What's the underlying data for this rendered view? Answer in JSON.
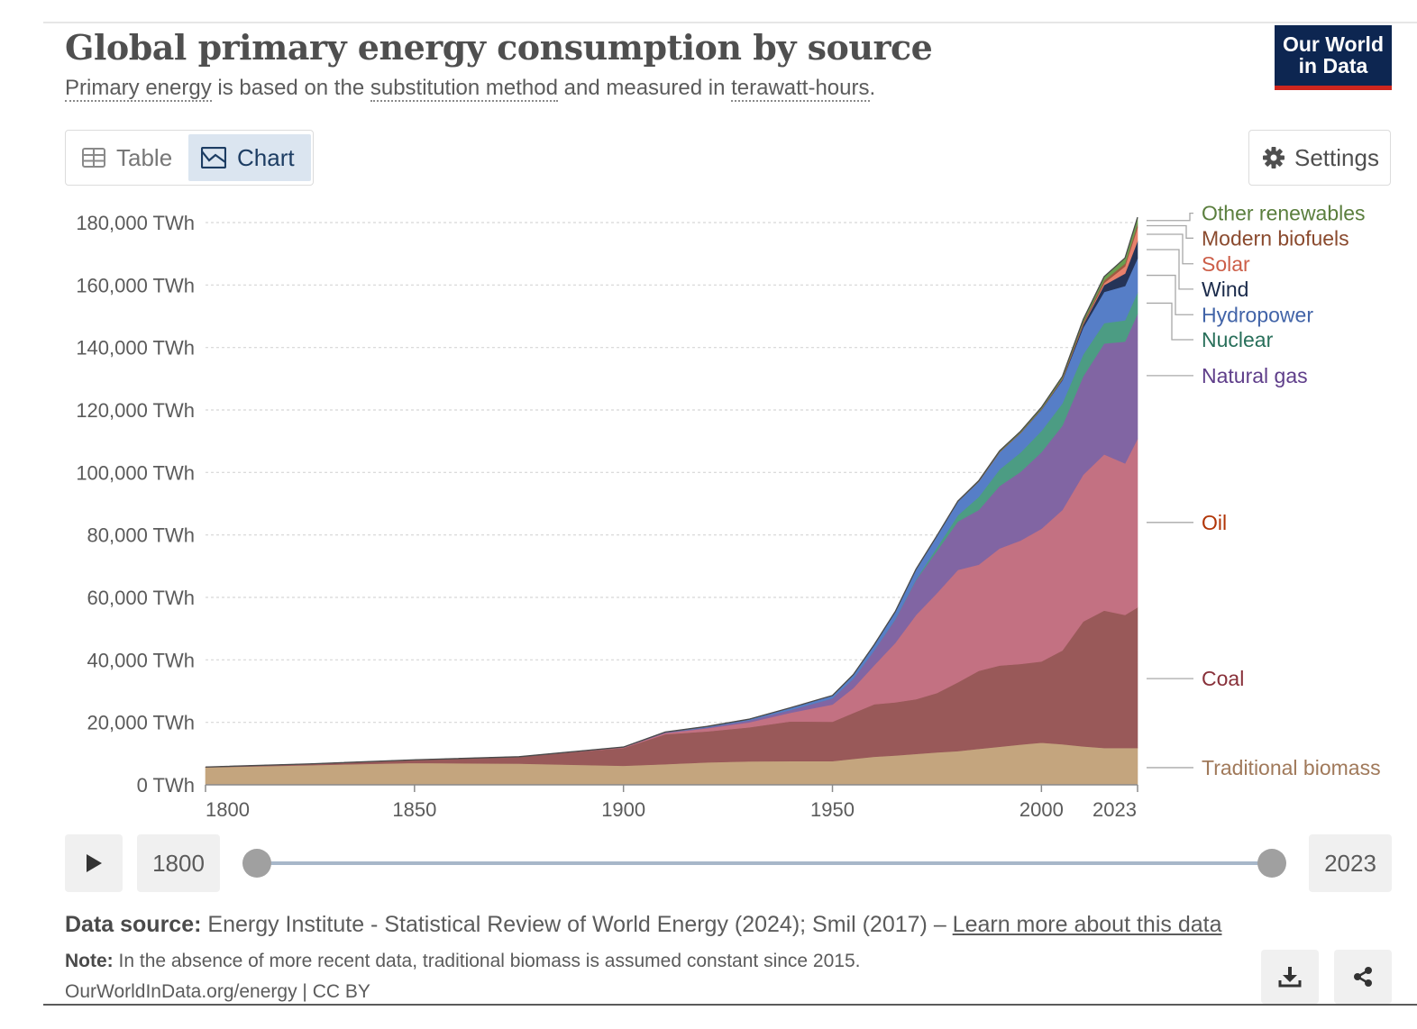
{
  "header": {
    "title": "Global primary energy consumption by source",
    "subtitle": {
      "p1": "Primary energy",
      "p2": " is based on the ",
      "p3": "substitution method",
      "p4": " and measured in ",
      "p5": "terawatt-hours",
      "p6": "."
    },
    "logo_line1": "Our World",
    "logo_line2": "in Data",
    "logo_color": "#0d2651"
  },
  "toolbar": {
    "table_label": "Table",
    "chart_label": "Chart",
    "settings_label": "Settings"
  },
  "timeline": {
    "start_year": "1800",
    "end_year": "2023"
  },
  "footer": {
    "source_label": "Data source:",
    "source_text": " Energy Institute - Statistical Review of World Energy (2024); Smil (2017) – ",
    "source_link": "Learn more about this data",
    "note_label": "Note:",
    "note_text": " In the absence of more recent data, traditional biomass is assumed constant since 2015.",
    "credit": "OurWorldInData.org/energy | CC BY"
  },
  "chart_data": {
    "type": "area",
    "stacked": true,
    "x": [
      1800,
      1825,
      1850,
      1875,
      1900,
      1910,
      1920,
      1930,
      1940,
      1950,
      1955,
      1960,
      1965,
      1970,
      1975,
      1980,
      1985,
      1990,
      1995,
      2000,
      2005,
      2010,
      2015,
      2020,
      2023
    ],
    "yticks": [
      0,
      20000,
      40000,
      60000,
      80000,
      100000,
      120000,
      140000,
      160000,
      180000
    ],
    "ytick_labels": [
      "0 TWh",
      "20,000 TWh",
      "40,000 TWh",
      "60,000 TWh",
      "80,000 TWh",
      "100,000 TWh",
      "120,000 TWh",
      "140,000 TWh",
      "160,000 TWh",
      "180,000 TWh"
    ],
    "xtick_labels": [
      "1800",
      "1850",
      "1900",
      "1950",
      "2000",
      "2023"
    ],
    "xticks": [
      1800,
      1850,
      1900,
      1950,
      2000,
      2023
    ],
    "ylim": [
      0,
      180000
    ],
    "grid": true,
    "legend": "right-inline",
    "series": [
      {
        "name": "Traditional biomass",
        "color": "#c4a57e",
        "label_color": "#a0795a",
        "label_y": 5500,
        "values": [
          5600,
          6300,
          7000,
          6800,
          6100,
          6600,
          7200,
          7500,
          7600,
          7600,
          8300,
          9000,
          9400,
          9900,
          10400,
          10800,
          11500,
          12200,
          12900,
          13500,
          13000,
          12300,
          11800,
          11800,
          11800
        ]
      },
      {
        "name": "Coal",
        "color": "#995959",
        "label_color": "#883039",
        "label_y": 34000,
        "values": [
          100,
          400,
          1000,
          2200,
          5700,
          9600,
          9900,
          10900,
          12700,
          12600,
          14700,
          16800,
          17000,
          17500,
          19000,
          22000,
          25000,
          26000,
          25800,
          26000,
          30000,
          40000,
          44000,
          42600,
          45000
        ]
      },
      {
        "name": "Oil",
        "color": "#c37182",
        "label_color": "#b13507",
        "label_y": 84000,
        "values": [
          0,
          0,
          0,
          0,
          200,
          400,
          1000,
          1600,
          2800,
          5500,
          8000,
          12500,
          19000,
          27000,
          32000,
          36000,
          34000,
          37500,
          39500,
          42500,
          45000,
          47000,
          50000,
          48500,
          54000
        ]
      },
      {
        "name": "Natural gas",
        "color": "#8165a3",
        "label_color": "#5f3e8a",
        "label_y": 131000,
        "values": [
          0,
          0,
          0,
          0,
          100,
          200,
          300,
          600,
          900,
          2000,
          3000,
          4800,
          7500,
          11200,
          13500,
          15500,
          17500,
          20000,
          22000,
          24500,
          27000,
          31500,
          35500,
          39000,
          40000
        ]
      },
      {
        "name": "Nuclear",
        "color": "#4c9c83",
        "label_color": "#286f5a",
        "label_y": 142500,
        "values": [
          0,
          0,
          0,
          0,
          0,
          0,
          0,
          0,
          0,
          0,
          0,
          0,
          100,
          200,
          1100,
          2000,
          4200,
          5300,
          6200,
          6800,
          7100,
          7000,
          6500,
          6800,
          6800
        ]
      },
      {
        "name": "Hydropower",
        "color": "#567ec7",
        "label_color": "#4264a8",
        "label_y": 150500,
        "values": [
          0,
          0,
          0,
          0,
          0,
          100,
          300,
          400,
          700,
          900,
          1300,
          1800,
          2400,
          3200,
          3700,
          4400,
          4900,
          5500,
          6200,
          6800,
          7400,
          8600,
          10000,
          11000,
          11000
        ]
      },
      {
        "name": "Wind",
        "color": "#253458",
        "label_color": "#1a2a4a",
        "label_y": 158700,
        "values": [
          0,
          0,
          0,
          0,
          0,
          0,
          0,
          0,
          0,
          0,
          0,
          0,
          0,
          0,
          0,
          0,
          0,
          0,
          30,
          80,
          250,
          900,
          2200,
          4000,
          5500
        ]
      },
      {
        "name": "Solar",
        "color": "#e8816c",
        "label_color": "#cc5e48",
        "label_y": 166800,
        "values": [
          0,
          0,
          0,
          0,
          0,
          0,
          0,
          0,
          0,
          0,
          0,
          0,
          0,
          0,
          0,
          0,
          0,
          0,
          0,
          10,
          20,
          90,
          650,
          2300,
          4300
        ]
      },
      {
        "name": "Modern biofuels",
        "color": "#9c5b42",
        "label_color": "#8a4a2e",
        "label_y": 175000,
        "values": [
          0,
          0,
          0,
          0,
          0,
          0,
          0,
          0,
          0,
          0,
          0,
          0,
          0,
          0,
          0,
          10,
          60,
          150,
          180,
          200,
          380,
          750,
          850,
          900,
          1200
        ]
      },
      {
        "name": "Other renewables",
        "color": "#6b9e4f",
        "label_color": "#5a7e3d",
        "label_y": 183000,
        "values": [
          0,
          0,
          0,
          0,
          0,
          0,
          0,
          0,
          0,
          0,
          0,
          0,
          20,
          50,
          80,
          120,
          200,
          280,
          350,
          450,
          560,
          840,
          1200,
          1800,
          2100
        ]
      }
    ]
  }
}
